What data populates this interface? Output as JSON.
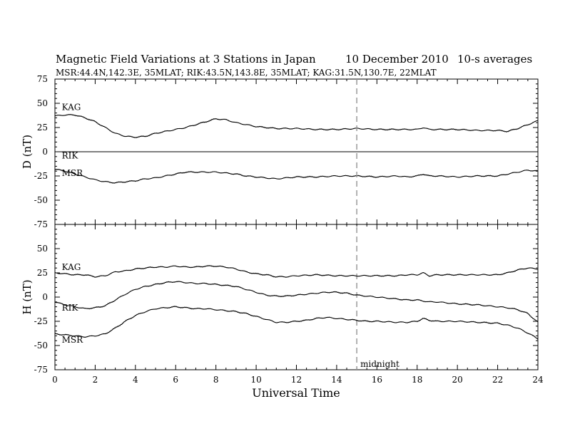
{
  "chart_data": [
    {
      "type": "line",
      "title": "Magnetic Field Variations at 3 Stations in Japan",
      "date": "10 December 2010",
      "note": "10-s averages",
      "stations_line": "MSR:44.4N,142.3E, 35MLAT;  RIK:43.5N,143.8E, 35MLAT;  KAG:31.5N,130.7E, 22MLAT",
      "ylabel": "D (nT)",
      "ylim": [
        -75,
        75
      ],
      "yticks": [
        75,
        50,
        25,
        0,
        -25,
        -50,
        -75
      ],
      "xlim": [
        0,
        24
      ],
      "series": [
        {
          "name": "KAG",
          "x": [
            0,
            0.5,
            1,
            1.5,
            2,
            2.5,
            3,
            3.5,
            4,
            4.5,
            5,
            5.5,
            6,
            6.5,
            7,
            7.5,
            8,
            8.5,
            9,
            9.5,
            10,
            11,
            12,
            13,
            14,
            15,
            16,
            17,
            17.5,
            18,
            18.3,
            18.6,
            19,
            20,
            21,
            22,
            22.5,
            23,
            23.5,
            24
          ],
          "values": [
            37,
            38,
            38,
            35,
            31,
            25,
            19,
            16,
            15,
            16,
            19,
            21,
            23,
            25,
            28,
            31,
            34,
            33,
            30,
            28,
            26,
            24,
            24,
            23,
            23,
            24,
            23,
            23,
            23,
            23,
            25,
            23,
            23,
            23,
            22,
            22,
            21,
            24,
            28,
            32
          ]
        },
        {
          "name": "RIK",
          "x": [
            0,
            24
          ],
          "values": [
            0,
            0
          ]
        },
        {
          "name": "MSR",
          "x": [
            0,
            0.5,
            1,
            1.5,
            2,
            2.5,
            3,
            3.5,
            4,
            4.5,
            5,
            5.5,
            6,
            6.5,
            7,
            7.5,
            8,
            8.5,
            9,
            9.5,
            10,
            10.5,
            11,
            11.5,
            12,
            13,
            14,
            15,
            16,
            17,
            17.5,
            18,
            18.3,
            18.6,
            19,
            20,
            21,
            22,
            22.5,
            23,
            23.5,
            24
          ],
          "values": [
            -18,
            -20,
            -23,
            -26,
            -29,
            -31,
            -32,
            -31,
            -30,
            -28,
            -27,
            -25,
            -23,
            -21,
            -21,
            -21,
            -21,
            -22,
            -23,
            -25,
            -26,
            -27,
            -28,
            -27,
            -26,
            -26,
            -25,
            -25,
            -26,
            -25,
            -26,
            -25,
            -23,
            -25,
            -25,
            -26,
            -25,
            -25,
            -23,
            -21,
            -19,
            -20
          ]
        }
      ],
      "series_labels": [
        {
          "text": "KAG",
          "x": 0.2,
          "y": 43
        },
        {
          "text": "RIK",
          "x": 0.2,
          "y": -7
        },
        {
          "text": "MSR",
          "x": 0.2,
          "y": -25
        }
      ]
    },
    {
      "type": "line",
      "ylabel": "H (nT)",
      "xlabel": "Universal Time",
      "ylim": [
        -75,
        75
      ],
      "yticks": [
        75,
        50,
        25,
        0,
        -25,
        -50,
        -75
      ],
      "xlim": [
        0,
        24
      ],
      "xticks": [
        0,
        2,
        4,
        6,
        8,
        10,
        12,
        14,
        16,
        18,
        20,
        22,
        24
      ],
      "vline": {
        "x": 15,
        "label": "midnight"
      },
      "series": [
        {
          "name": "KAG",
          "x": [
            0,
            0.5,
            1,
            1.5,
            2,
            2.5,
            3,
            3.5,
            4,
            4.5,
            5,
            5.5,
            6,
            6.5,
            7,
            7.5,
            8,
            8.5,
            9,
            9.5,
            10,
            10.5,
            11,
            11.5,
            12,
            13,
            14,
            15,
            16,
            17,
            17.5,
            18,
            18.3,
            18.6,
            19,
            20,
            21,
            22,
            22.5,
            23,
            23.5,
            24
          ],
          "values": [
            25,
            24,
            23,
            23,
            21,
            22,
            26,
            27,
            29,
            30,
            31,
            31,
            32,
            31,
            31,
            32,
            32,
            31,
            29,
            26,
            24,
            23,
            21,
            21,
            22,
            23,
            22,
            22,
            22,
            22,
            23,
            23,
            25,
            22,
            23,
            23,
            23,
            23,
            25,
            28,
            30,
            29
          ]
        },
        {
          "name": "RIK",
          "x": [
            0,
            0.5,
            1,
            1.5,
            2,
            2.5,
            3,
            3.5,
            4,
            4.5,
            5,
            5.5,
            6,
            6.5,
            7,
            7.5,
            8,
            8.5,
            9,
            9.5,
            10,
            10.5,
            11,
            11.5,
            12,
            12.5,
            13,
            13.5,
            14,
            14.5,
            15,
            15.5,
            16,
            17,
            17.5,
            18,
            18.3,
            18.6,
            19,
            20,
            21,
            22,
            22.5,
            23,
            23.5,
            24
          ],
          "values": [
            -5,
            -8,
            -10,
            -12,
            -11,
            -9,
            -3,
            3,
            8,
            11,
            13,
            15,
            16,
            15,
            14,
            14,
            13,
            12,
            11,
            8,
            5,
            2,
            1,
            1,
            2,
            3,
            4,
            5,
            5,
            4,
            2,
            1,
            0,
            -2,
            -3,
            -3,
            -4,
            -5,
            -5,
            -7,
            -8,
            -10,
            -11,
            -13,
            -17,
            -26
          ]
        },
        {
          "name": "MSR",
          "x": [
            0,
            0.5,
            1,
            1.5,
            2,
            2.5,
            3,
            3.5,
            4,
            4.5,
            5,
            5.5,
            6,
            6.5,
            7,
            7.5,
            8,
            8.5,
            9,
            9.5,
            10,
            10.5,
            11,
            11.5,
            12,
            12.5,
            13,
            13.5,
            14,
            14.5,
            15,
            15.5,
            16,
            17,
            17.5,
            18,
            18.3,
            18.6,
            19,
            20,
            21,
            22,
            22.5,
            23,
            23.5,
            24
          ],
          "values": [
            -38,
            -39,
            -40,
            -41,
            -40,
            -38,
            -32,
            -25,
            -19,
            -15,
            -12,
            -11,
            -10,
            -11,
            -12,
            -12,
            -13,
            -14,
            -15,
            -17,
            -20,
            -23,
            -26,
            -26,
            -25,
            -24,
            -22,
            -21,
            -22,
            -23,
            -24,
            -25,
            -25,
            -26,
            -26,
            -25,
            -22,
            -24,
            -25,
            -25,
            -26,
            -27,
            -29,
            -32,
            -37,
            -43
          ]
        }
      ],
      "series_labels": [
        {
          "text": "KAG",
          "x": 0.2,
          "y": 28
        },
        {
          "text": "RIK",
          "x": 0.2,
          "y": -14
        },
        {
          "text": "MSR",
          "x": 0.2,
          "y": -47
        }
      ]
    }
  ]
}
